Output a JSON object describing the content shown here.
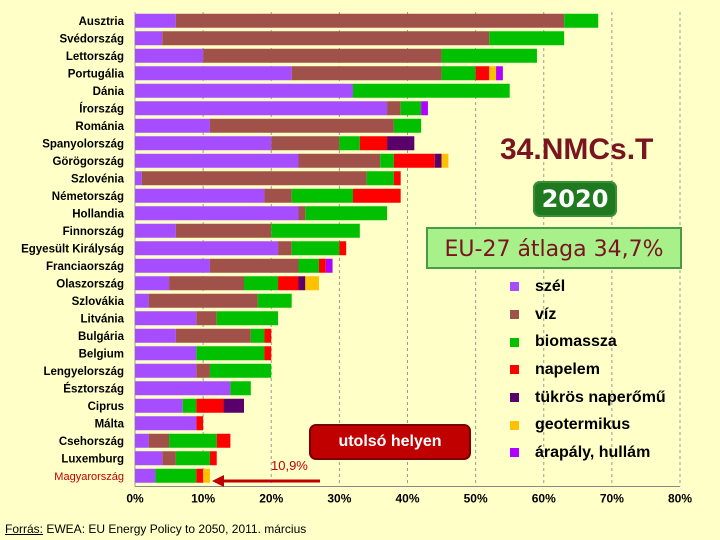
{
  "slide": {
    "title": "34.NMCs.T",
    "year_badge": "2020",
    "average_badge": "EU-27 átlaga 34,7%",
    "last_place_badge": "utolsó helyen",
    "annotation_value": "10,9%",
    "source_label": "Forrás:",
    "source_text": " EWEA: EU Energy Policy to 2050,  2011. március"
  },
  "legend": [
    {
      "label": "szél",
      "color": "#a64dff"
    },
    {
      "label": "víz",
      "color": "#a0524a"
    },
    {
      "label": "biomassza",
      "color": "#00c000"
    },
    {
      "label": "napelem",
      "color": "#ff0000"
    },
    {
      "label": "tükrös naperőmű",
      "color": "#5a006a"
    },
    {
      "label": "geotermikus",
      "color": "#ffc000"
    },
    {
      "label": "árapály, hullám",
      "color": "#b200ff"
    }
  ],
  "chart_data": {
    "type": "bar",
    "orientation": "horizontal",
    "stacked": true,
    "xlim": [
      0,
      80
    ],
    "x_ticks": [
      "0%",
      "10%",
      "20%",
      "30%",
      "40%",
      "50%",
      "60%",
      "70%",
      "80%"
    ],
    "categories": [
      "Ausztria",
      "Svédország",
      "Lettország",
      "Portugália",
      "Dánia",
      "Írország",
      "Románia",
      "Spanyolország",
      "Görögország",
      "Szlovénia",
      "Németország",
      "Hollandia",
      "Finnország",
      "Egyesült Királyság",
      "Franciaország",
      "Olaszország",
      "Szlovákia",
      "Litvánia",
      "Bulgária",
      "Belgium",
      "Lengyelország",
      "Észtország",
      "Ciprus",
      "Málta",
      "Csehország",
      "Luxemburg",
      "Magyarország"
    ],
    "highlight_category": "Magyarország",
    "highlight_color": "#c00000",
    "series": [
      {
        "name": "szél",
        "color": "#a64dff",
        "values": [
          6,
          4,
          10,
          23,
          32,
          37,
          11,
          20,
          24,
          1,
          19,
          24,
          6,
          21,
          11,
          5,
          2,
          9,
          6,
          9,
          9,
          14,
          7,
          9,
          2,
          4,
          3
        ]
      },
      {
        "name": "víz",
        "color": "#a0524a",
        "values": [
          57,
          48,
          35,
          22,
          0,
          2,
          27,
          10,
          12,
          33,
          4,
          1,
          14,
          2,
          13,
          11,
          16,
          3,
          11,
          0,
          2,
          0,
          0,
          0,
          3,
          2,
          0
        ]
      },
      {
        "name": "biomassza",
        "color": "#00c000",
        "values": [
          5,
          11,
          14,
          5,
          23,
          3,
          4,
          3,
          2,
          4,
          9,
          12,
          13,
          7,
          3,
          5,
          5,
          9,
          2,
          10,
          9,
          3,
          2,
          0,
          7,
          5,
          6
        ]
      },
      {
        "name": "napelem",
        "color": "#ff0000",
        "values": [
          0,
          0,
          0,
          2,
          0,
          0,
          0,
          4,
          6,
          1,
          7,
          0,
          0,
          1,
          1,
          3,
          0,
          0,
          1,
          1,
          0,
          0,
          4,
          1,
          2,
          1,
          1
        ]
      },
      {
        "name": "tükrös naperőmű",
        "color": "#5a006a",
        "values": [
          0,
          0,
          0,
          0,
          0,
          0,
          0,
          4,
          1,
          0,
          0,
          0,
          0,
          0,
          0,
          1,
          0,
          0,
          0,
          0,
          0,
          0,
          3,
          0,
          0,
          0,
          0
        ]
      },
      {
        "name": "geotermikus",
        "color": "#ffc000",
        "values": [
          0,
          0,
          0,
          1,
          0,
          0,
          0,
          0,
          1,
          0,
          0,
          0,
          0,
          0,
          0,
          2,
          0,
          0,
          0,
          0,
          0,
          0,
          0,
          0,
          0,
          0,
          1
        ]
      },
      {
        "name": "árapály, hullám",
        "color": "#b200ff",
        "values": [
          0,
          0,
          0,
          1,
          0,
          1,
          0,
          0,
          0,
          0,
          0,
          0,
          0,
          0,
          1,
          0,
          0,
          0,
          0,
          0,
          0,
          0,
          0,
          0,
          0,
          0,
          0
        ]
      }
    ]
  }
}
